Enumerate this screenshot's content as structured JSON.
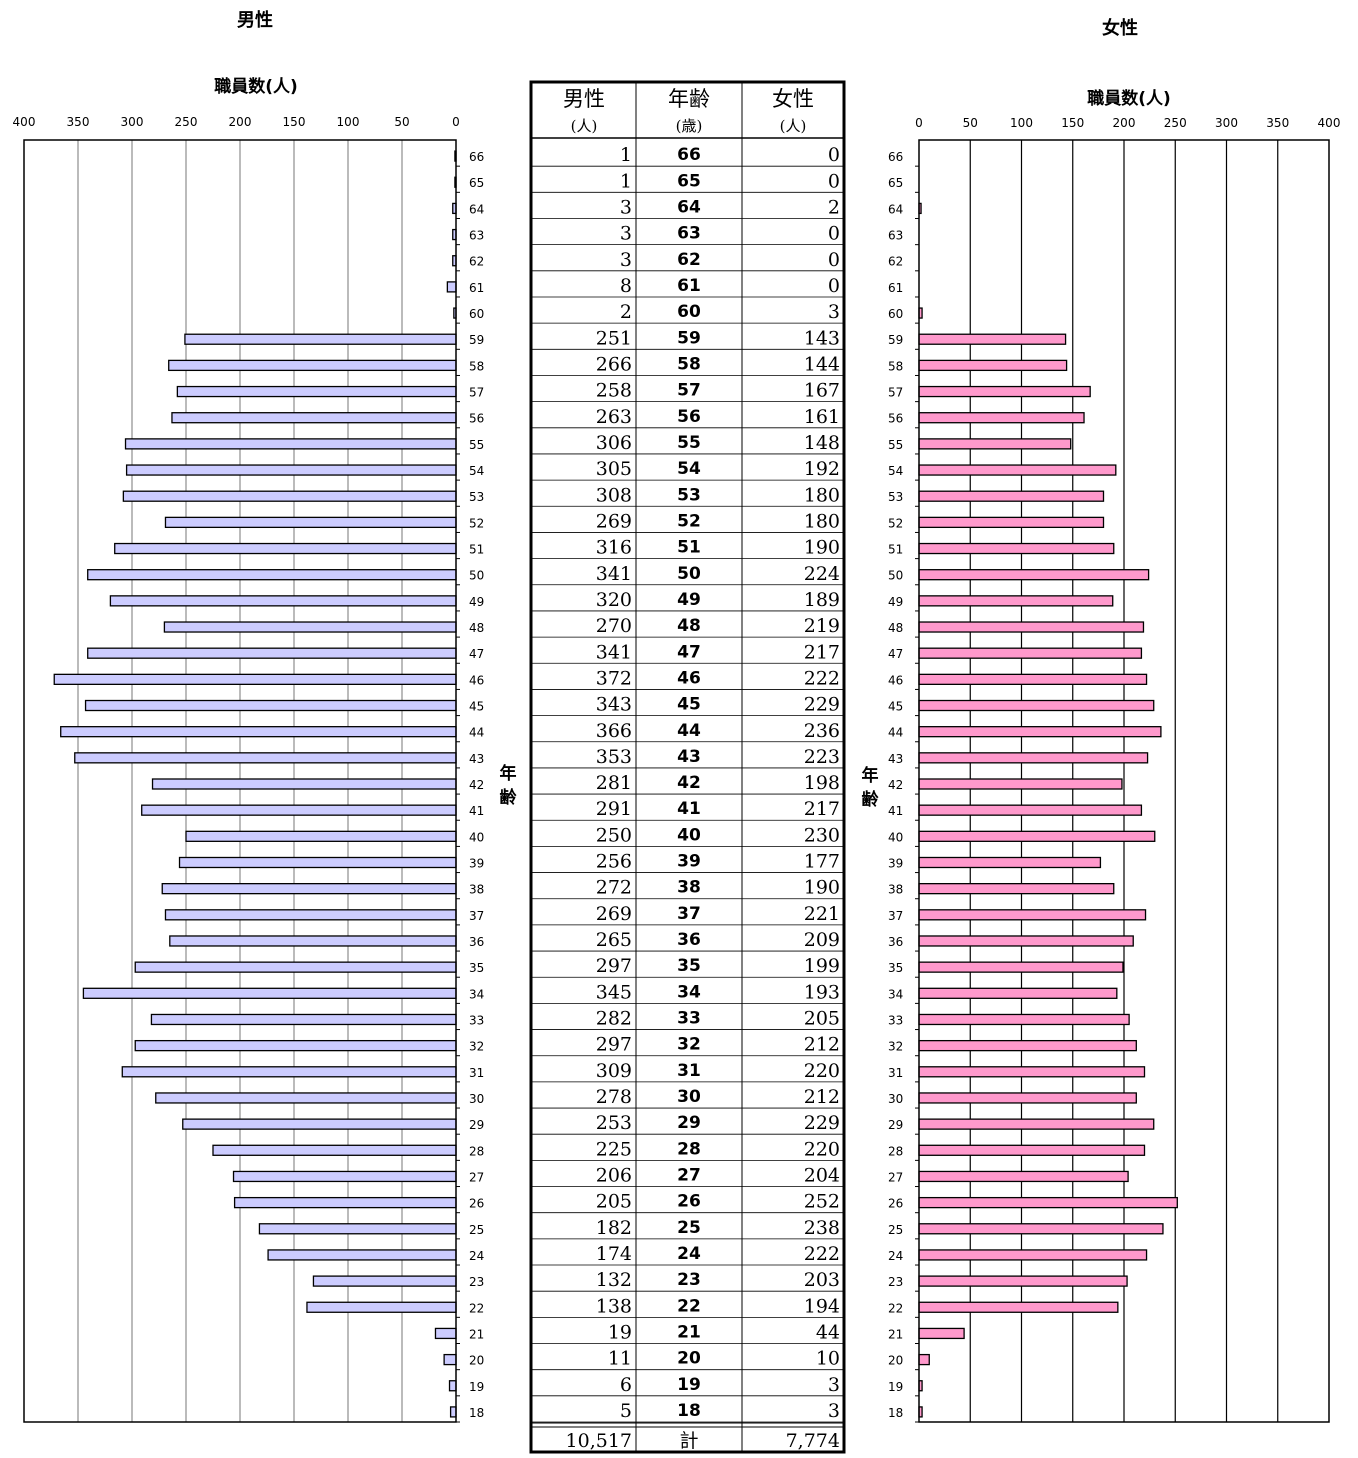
{
  "headers": {
    "male_title": "男性",
    "female_title": "女性"
  },
  "axis": {
    "label": "職員数(人)",
    "ticks": [
      "0",
      "50",
      "100",
      "150",
      "200",
      "250",
      "300",
      "350",
      "400"
    ],
    "age_label_chars": [
      "年",
      "齢"
    ]
  },
  "table": {
    "col_male": "男性",
    "col_male_unit": "(人)",
    "col_age": "年齢",
    "col_age_unit": "(歳)",
    "col_female": "女性",
    "col_female_unit": "(人)",
    "total_label": "計",
    "total_male": "10,517",
    "total_female": "7,774"
  },
  "colors": {
    "male_bar": "#ccccff",
    "female_bar": "#ff99cc",
    "bar_outline": "#000000"
  },
  "chart_data": [
    {
      "type": "bar",
      "orientation": "horizontal",
      "title": "男性",
      "xlabel": "職員数(人)",
      "ylabel": "年齢",
      "xlim": [
        0,
        400
      ],
      "x_direction": "reversed",
      "grid": true,
      "categories": [
        "66",
        "65",
        "64",
        "63",
        "62",
        "61",
        "60",
        "59",
        "58",
        "57",
        "56",
        "55",
        "54",
        "53",
        "52",
        "51",
        "50",
        "49",
        "48",
        "47",
        "46",
        "45",
        "44",
        "43",
        "42",
        "41",
        "40",
        "39",
        "38",
        "37",
        "36",
        "35",
        "34",
        "33",
        "32",
        "31",
        "30",
        "29",
        "28",
        "27",
        "26",
        "25",
        "24",
        "23",
        "22",
        "21",
        "20",
        "19",
        "18"
      ],
      "values": [
        1,
        1,
        3,
        3,
        3,
        8,
        2,
        251,
        266,
        258,
        263,
        306,
        305,
        308,
        269,
        316,
        341,
        320,
        270,
        341,
        372,
        343,
        366,
        353,
        281,
        291,
        250,
        256,
        272,
        269,
        265,
        297,
        345,
        282,
        297,
        309,
        278,
        253,
        225,
        206,
        205,
        182,
        174,
        132,
        138,
        19,
        11,
        6,
        5
      ]
    },
    {
      "type": "bar",
      "orientation": "horizontal",
      "title": "女性",
      "xlabel": "職員数(人)",
      "ylabel": "年齢",
      "xlim": [
        0,
        400
      ],
      "grid": true,
      "categories": [
        "66",
        "65",
        "64",
        "63",
        "62",
        "61",
        "60",
        "59",
        "58",
        "57",
        "56",
        "55",
        "54",
        "53",
        "52",
        "51",
        "50",
        "49",
        "48",
        "47",
        "46",
        "45",
        "44",
        "43",
        "42",
        "41",
        "40",
        "39",
        "38",
        "37",
        "36",
        "35",
        "34",
        "33",
        "32",
        "31",
        "30",
        "29",
        "28",
        "27",
        "26",
        "25",
        "24",
        "23",
        "22",
        "21",
        "20",
        "19",
        "18"
      ],
      "values": [
        0,
        0,
        2,
        0,
        0,
        0,
        3,
        143,
        144,
        167,
        161,
        148,
        192,
        180,
        180,
        190,
        224,
        189,
        219,
        217,
        222,
        229,
        236,
        223,
        198,
        217,
        230,
        177,
        190,
        221,
        209,
        199,
        193,
        205,
        212,
        220,
        212,
        229,
        220,
        204,
        252,
        238,
        222,
        203,
        194,
        44,
        10,
        3,
        3
      ]
    }
  ]
}
